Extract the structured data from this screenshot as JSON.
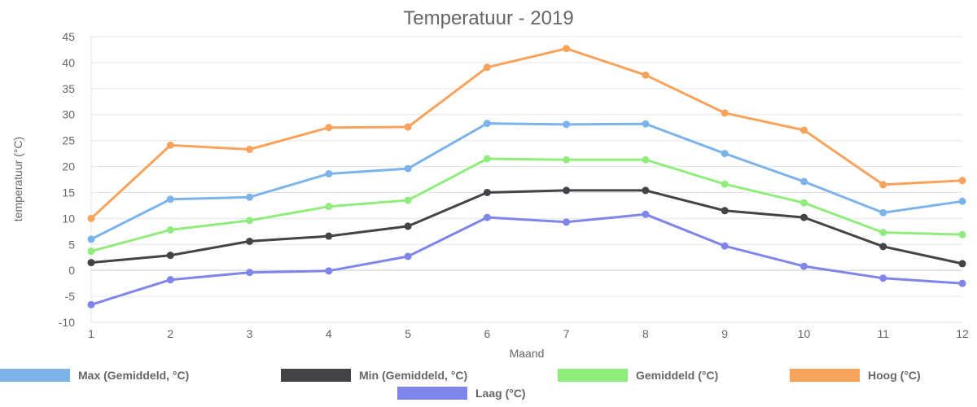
{
  "chart_data": {
    "type": "line",
    "title": "Temperatuur - 2019",
    "xlabel": "Maand",
    "ylabel": "temperatuur (°C)",
    "x": [
      1,
      2,
      3,
      4,
      5,
      6,
      7,
      8,
      9,
      10,
      11,
      12
    ],
    "ylim": [
      -10,
      45
    ],
    "yticks": [
      -10,
      -5,
      0,
      5,
      10,
      15,
      20,
      25,
      30,
      35,
      40,
      45
    ],
    "grid": true,
    "legend_position": "bottom",
    "series": [
      {
        "name": "Max (Gemiddeld, °C)",
        "color": "#7cb3e9",
        "values": [
          6.0,
          13.7,
          14.1,
          18.6,
          19.6,
          28.3,
          28.1,
          28.2,
          22.5,
          17.1,
          11.1,
          13.3
        ]
      },
      {
        "name": "Min (Gemiddeld, °C)",
        "color": "#434348",
        "values": [
          1.5,
          2.9,
          5.6,
          6.6,
          8.5,
          15.0,
          15.4,
          15.4,
          11.5,
          10.2,
          4.6,
          1.3
        ]
      },
      {
        "name": "Gemiddeld (°C)",
        "color": "#90ed7d",
        "values": [
          3.7,
          7.8,
          9.6,
          12.3,
          13.5,
          21.5,
          21.3,
          21.3,
          16.6,
          13.0,
          7.3,
          6.9
        ]
      },
      {
        "name": "Hoog (°C)",
        "color": "#f7a35c",
        "values": [
          10.0,
          24.1,
          23.3,
          27.5,
          27.6,
          39.1,
          42.7,
          37.6,
          30.3,
          27.0,
          16.5,
          17.3
        ]
      },
      {
        "name": "Laag (°C)",
        "color": "#8085e9",
        "values": [
          -6.6,
          -1.8,
          -0.4,
          -0.1,
          2.7,
          10.2,
          9.3,
          10.8,
          4.7,
          0.8,
          -1.5,
          -2.5
        ]
      }
    ]
  }
}
